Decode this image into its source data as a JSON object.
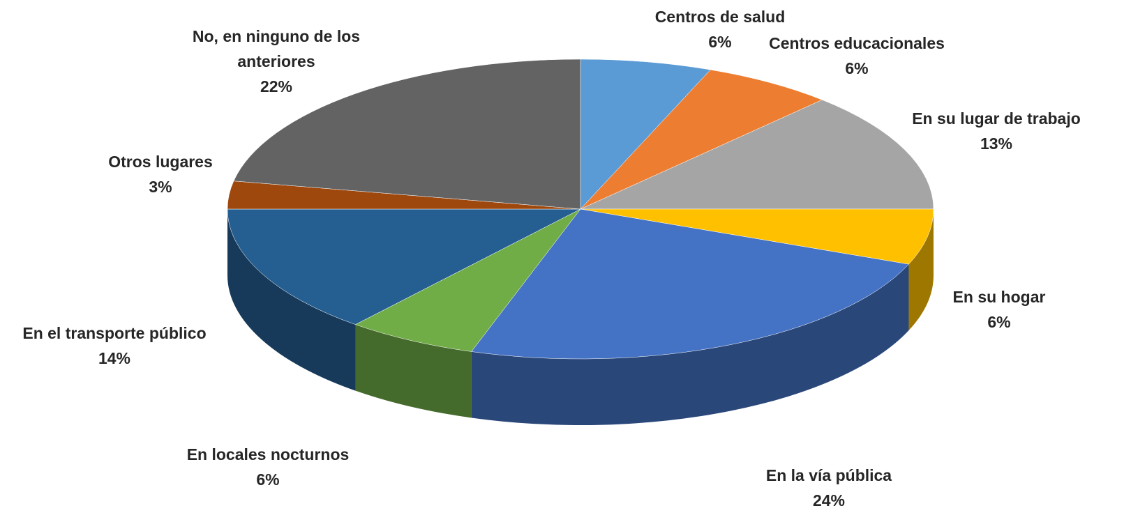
{
  "chart_data": {
    "type": "pie",
    "categories": [
      "Centros de salud",
      "Centros educacionales",
      "En su lugar de trabajo",
      "En su hogar",
      "En la vía pública",
      "En locales nocturnos",
      "En el transporte público",
      "Otros lugares",
      "No, en ninguno de los anteriores"
    ],
    "values": [
      6,
      6,
      13,
      6,
      24,
      6,
      14,
      3,
      22
    ],
    "value_labels": [
      "6%",
      "6%",
      "13%",
      "6%",
      "24%",
      "6%",
      "14%",
      "3%",
      "22%"
    ],
    "colors": [
      "#5b9bd5",
      "#ed7d31",
      "#a5a5a5",
      "#ffc000",
      "#4472c4",
      "#70ad47",
      "#255e91",
      "#9e480e",
      "#636363"
    ]
  }
}
